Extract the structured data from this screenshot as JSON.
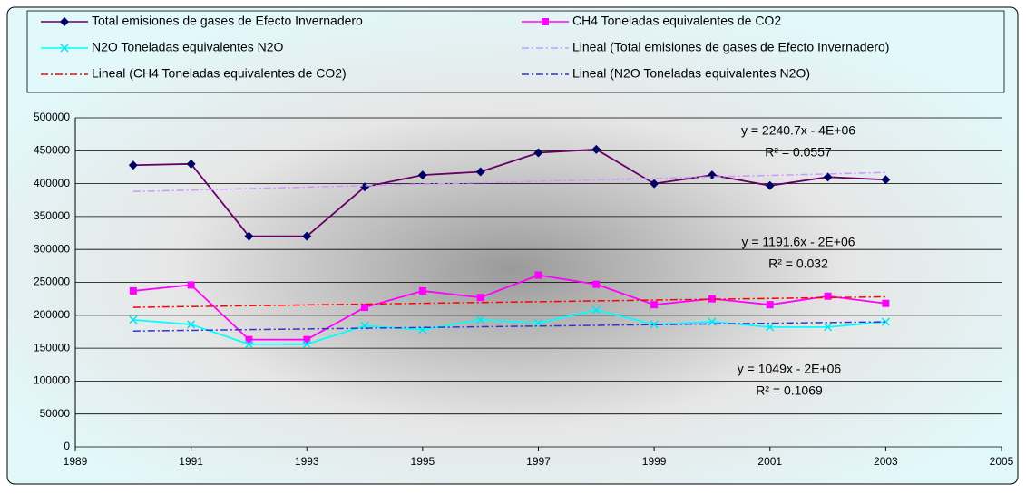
{
  "chart_data": {
    "type": "line",
    "x": [
      1990,
      1991,
      1992,
      1993,
      1994,
      1995,
      1996,
      1997,
      1998,
      1999,
      2000,
      2001,
      2002,
      2003
    ],
    "series": [
      {
        "name": "Total emisiones de gases de Efecto Invernadero",
        "color": "#660066",
        "marker": "diamond",
        "marker_color": "#000066",
        "values": [
          428000,
          430000,
          320000,
          320000,
          395000,
          413000,
          418000,
          447000,
          452000,
          400000,
          413000,
          397000,
          410000,
          406000
        ]
      },
      {
        "name": "CH4 Toneladas equivalentes de CO2",
        "color": "#ff00ff",
        "marker": "square",
        "marker_color": "#ff00ff",
        "values": [
          237000,
          246000,
          163000,
          163000,
          212000,
          237000,
          227000,
          261000,
          247000,
          216000,
          225000,
          216000,
          229000,
          218000
        ]
      },
      {
        "name": "N2O Toneladas equivalentes N2O",
        "color": "#00ffff",
        "marker": "x",
        "marker_color": "#00e5ee",
        "values": [
          193000,
          186000,
          156000,
          156000,
          184000,
          178000,
          193000,
          188000,
          208000,
          186000,
          190000,
          182000,
          182000,
          190000
        ]
      },
      {
        "name": "Lineal (Total emisiones de gases de Efecto Invernadero)",
        "color": "#cc99ff",
        "dash": true,
        "x": [
          1990,
          2003
        ],
        "values": [
          388000,
          417000
        ]
      },
      {
        "name": "Lineal (CH4 Toneladas equivalentes de CO2)",
        "color": "#ff0000",
        "dash": true,
        "x": [
          1990,
          2003
        ],
        "values": [
          212000,
          228000
        ]
      },
      {
        "name": "Lineal (N2O Toneladas equivalentes N2O)",
        "color": "#3333cc",
        "dash": true,
        "x": [
          1990,
          2003
        ],
        "values": [
          176000,
          190000
        ]
      }
    ],
    "annotations": [
      {
        "text": "y = 2240.7x - 4E+06",
        "r2": "R² = 0.0557"
      },
      {
        "text": "y = 1191.6x - 2E+06",
        "r2": "R² = 0.032"
      },
      {
        "text": "y = 1049x - 2E+06",
        "r2": "R² = 0.1069"
      }
    ],
    "xlim": [
      1989,
      2005
    ],
    "xticks": [
      1989,
      1991,
      1993,
      1995,
      1997,
      1999,
      2001,
      2003,
      2005
    ],
    "ylim": [
      0,
      500000
    ],
    "yticks": [
      0,
      50000,
      100000,
      150000,
      200000,
      250000,
      300000,
      350000,
      400000,
      450000,
      500000
    ],
    "grid": true
  }
}
